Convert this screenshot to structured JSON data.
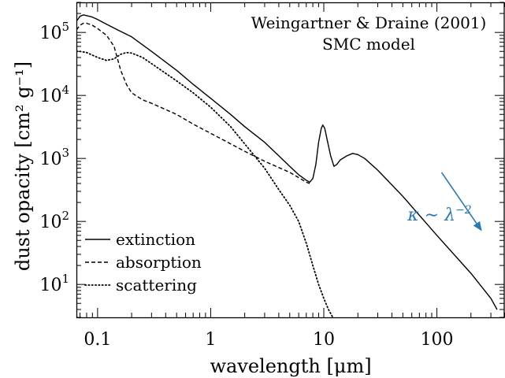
{
  "chart_data": {
    "type": "line",
    "title": "",
    "xlabel": "wavelength [μm]",
    "ylabel": "dust opacity [cm² g⁻¹]",
    "xscale": "log",
    "yscale": "log",
    "xlim": [
      0.065,
      400
    ],
    "ylim": [
      3,
      300000
    ],
    "grid": false,
    "legend_placement": "bottom-left",
    "x_ticks": [
      {
        "value": 0.1,
        "label": "0.1"
      },
      {
        "value": 1,
        "label": "1"
      },
      {
        "value": 10,
        "label": "10"
      },
      {
        "value": 100,
        "label": "100"
      }
    ],
    "y_ticks": [
      {
        "value": 10,
        "mantissa": "10",
        "exp": "1"
      },
      {
        "value": 100,
        "mantissa": "10",
        "exp": "2"
      },
      {
        "value": 1000,
        "mantissa": "10",
        "exp": "3"
      },
      {
        "value": 10000,
        "mantissa": "10",
        "exp": "4"
      },
      {
        "value": 100000,
        "mantissa": "10",
        "exp": "5"
      }
    ],
    "annotations": {
      "source_line1": "Weingartner & Draine (2001)",
      "source_line2": "SMC model",
      "slope_label_main": "κ ∼ λ",
      "slope_label_exp": "−2",
      "slope_color": "#2a7ab0",
      "slope_arrow": [
        [
          110,
          600
        ],
        [
          250,
          70
        ]
      ]
    },
    "series": [
      {
        "name": "extinction",
        "dash": "solid",
        "x": [
          0.065,
          0.07,
          0.075,
          0.08,
          0.09,
          0.1,
          0.12,
          0.15,
          0.2,
          0.3,
          0.5,
          0.7,
          1,
          1.5,
          2,
          3,
          4,
          5,
          6,
          7,
          7.5,
          8,
          8.5,
          9,
          9.5,
          9.8,
          10.2,
          10.7,
          11.5,
          12.3,
          13,
          14,
          16,
          18,
          20,
          23,
          30,
          50,
          100,
          200,
          300,
          340
        ],
        "y": [
          150000,
          180000,
          190000,
          185000,
          175000,
          160000,
          135000,
          110000,
          85000,
          50000,
          25000,
          15000,
          9000,
          5000,
          3200,
          1800,
          1100,
          750,
          550,
          450,
          420,
          480,
          800,
          1800,
          3000,
          3400,
          3000,
          2000,
          1100,
          750,
          800,
          950,
          1100,
          1200,
          1150,
          1000,
          650,
          250,
          60,
          15,
          6,
          4
        ]
      },
      {
        "name": "absorption",
        "dash": "dashed",
        "x": [
          0.065,
          0.07,
          0.075,
          0.08,
          0.09,
          0.1,
          0.12,
          0.14,
          0.16,
          0.18,
          0.2,
          0.25,
          0.3,
          0.5,
          0.7,
          1,
          2,
          3,
          5,
          7,
          7.5
        ],
        "y": [
          110000,
          130000,
          140000,
          140000,
          130000,
          115000,
          90000,
          60000,
          25000,
          15000,
          11000,
          8500,
          7500,
          5000,
          3500,
          2500,
          1300,
          900,
          600,
          420,
          400
        ]
      },
      {
        "name": "scattering",
        "dash": "dotted",
        "x": [
          0.065,
          0.07,
          0.08,
          0.1,
          0.12,
          0.14,
          0.16,
          0.18,
          0.2,
          0.25,
          0.3,
          0.5,
          0.7,
          1,
          1.5,
          2,
          3,
          4,
          5,
          6,
          7,
          8,
          9,
          10,
          11,
          12
        ],
        "y": [
          50000,
          50000,
          48000,
          40000,
          36000,
          38000,
          45000,
          48000,
          47000,
          40000,
          32000,
          17000,
          11000,
          6500,
          3200,
          1700,
          700,
          320,
          180,
          100,
          45,
          20,
          10,
          6,
          4,
          3
        ]
      }
    ]
  }
}
